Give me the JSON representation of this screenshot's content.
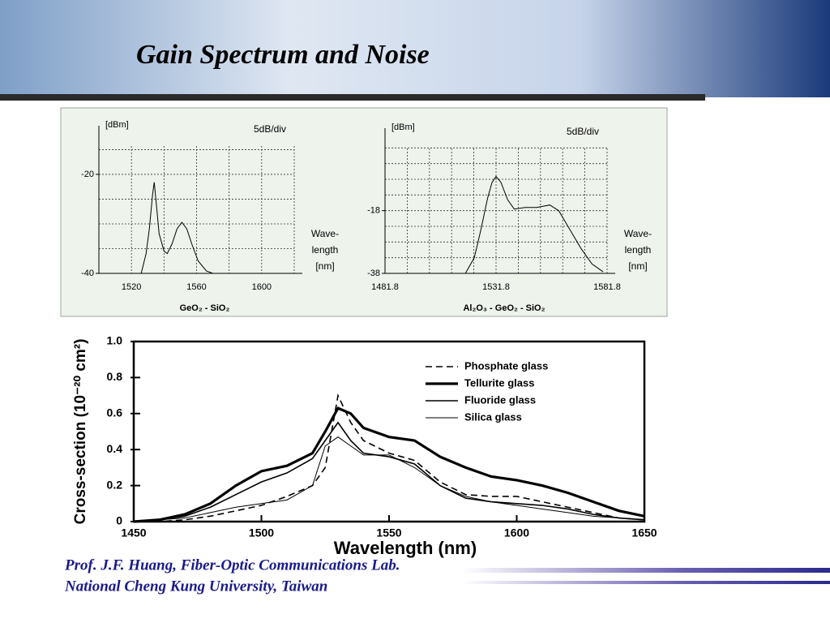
{
  "title": "Gain Spectrum and Noise",
  "footer": [
    "Prof. J.F. Huang, Fiber-Optic Communications Lab.",
    "National Cheng Kung University, Taiwan"
  ],
  "chart_data": [
    {
      "type": "line",
      "ylabel": "[dBm]",
      "annotation": "5dB/div",
      "xlabel_lines": [
        "Wave-",
        "length",
        "[nm]"
      ],
      "caption": "GeO₂ - SiO₂",
      "xlim": [
        1500,
        1620
      ],
      "ylim": [
        -40,
        -11
      ],
      "xticks": [
        1520,
        1560,
        1600
      ],
      "yticks": [
        -40,
        -20
      ],
      "xgrid": [
        1520,
        1540,
        1560,
        1580,
        1600,
        1620
      ],
      "ygrid": [
        -40,
        -35,
        -30,
        -25,
        -20,
        -15
      ],
      "grid": true,
      "x": [
        1526,
        1529,
        1531,
        1533,
        1534,
        1535,
        1537,
        1540,
        1542,
        1545,
        1548,
        1551,
        1554,
        1557,
        1561,
        1566,
        1570
      ],
      "series": [
        {
          "color": "#000000",
          "values": [
            -40,
            -36,
            -31,
            -24,
            -21.6,
            -25,
            -32,
            -35.5,
            -36,
            -34,
            -31,
            -29.7,
            -31,
            -34,
            -37.5,
            -39.5,
            -40
          ]
        }
      ]
    },
    {
      "type": "line",
      "ylabel": "[dBm]",
      "annotation": "5dB/div",
      "xlabel_lines": [
        "Wave-",
        "length",
        "[nm]"
      ],
      "caption": "Al₂O₃ - GeO₂ - SiO₂",
      "xlim": [
        1481.8,
        1581.8
      ],
      "ylim": [
        -38,
        7
      ],
      "xticks": [
        1481.8,
        1531.8,
        1581.8
      ],
      "yticks": [
        -38,
        -18
      ],
      "xgrid": [
        1481.8,
        1491.8,
        1501.8,
        1511.8,
        1521.8,
        1531.8,
        1541.8,
        1551.8,
        1561.8,
        1571.8,
        1581.8
      ],
      "ygrid": [
        -38,
        -33,
        -28,
        -23,
        -18,
        -13,
        -8,
        -3,
        2
      ],
      "grid": true,
      "x": [
        1518,
        1522,
        1525,
        1528,
        1530,
        1531.8,
        1534,
        1537,
        1540,
        1545,
        1550,
        1556,
        1560,
        1565,
        1570,
        1575,
        1580
      ],
      "series": [
        {
          "color": "#000000",
          "values": [
            -38,
            -33,
            -24,
            -14,
            -9,
            -7.1,
            -9,
            -14.5,
            -17.5,
            -17,
            -17,
            -16.2,
            -18,
            -24,
            -30,
            -35,
            -37.5
          ]
        }
      ]
    },
    {
      "type": "line",
      "ylabel": "Cross-section (10⁻²⁰ cm²)",
      "xlabel": "Wavelength (nm)",
      "xlim": [
        1450,
        1650
      ],
      "ylim": [
        0,
        1
      ],
      "xticks": [
        1450,
        1500,
        1550,
        1600,
        1650
      ],
      "yticks": [
        0,
        0.2,
        0.4,
        0.6,
        0.8,
        {
          "value": 1,
          "label": "1.0"
        }
      ],
      "legend": "upper right",
      "x": [
        1450,
        1460,
        1470,
        1480,
        1490,
        1500,
        1510,
        1520,
        1525,
        1530,
        1535,
        1540,
        1550,
        1560,
        1570,
        1580,
        1590,
        1600,
        1610,
        1620,
        1630,
        1640,
        1650
      ],
      "series": [
        {
          "name": "Phosphate glass",
          "color": "#000000",
          "values": [
            0,
            0,
            0.01,
            0.03,
            0.06,
            0.09,
            0.14,
            0.2,
            0.3,
            0.7,
            0.55,
            0.45,
            0.38,
            0.34,
            0.22,
            0.15,
            0.14,
            0.14,
            0.11,
            0.08,
            0.05,
            0.02,
            0.01
          ]
        },
        {
          "name": "Tellurite glass",
          "color": "#000000",
          "values": [
            0,
            0.01,
            0.04,
            0.1,
            0.2,
            0.28,
            0.31,
            0.38,
            0.5,
            0.63,
            0.6,
            0.52,
            0.47,
            0.45,
            0.36,
            0.3,
            0.25,
            0.23,
            0.2,
            0.16,
            0.11,
            0.06,
            0.03
          ]
        },
        {
          "name": "Fluoride glass",
          "color": "#000000",
          "values": [
            0,
            0.01,
            0.03,
            0.08,
            0.15,
            0.22,
            0.27,
            0.35,
            0.45,
            0.55,
            0.45,
            0.38,
            0.36,
            0.32,
            0.2,
            0.13,
            0.11,
            0.1,
            0.09,
            0.07,
            0.04,
            0.02,
            0.01
          ]
        },
        {
          "name": "Silica glass",
          "color": "#000000",
          "values": [
            0,
            0.01,
            0.02,
            0.05,
            0.08,
            0.1,
            0.12,
            0.2,
            0.42,
            0.47,
            0.42,
            0.37,
            0.37,
            0.3,
            0.2,
            0.14,
            0.11,
            0.09,
            0.07,
            0.05,
            0.03,
            0.02,
            0.01
          ]
        }
      ]
    }
  ]
}
